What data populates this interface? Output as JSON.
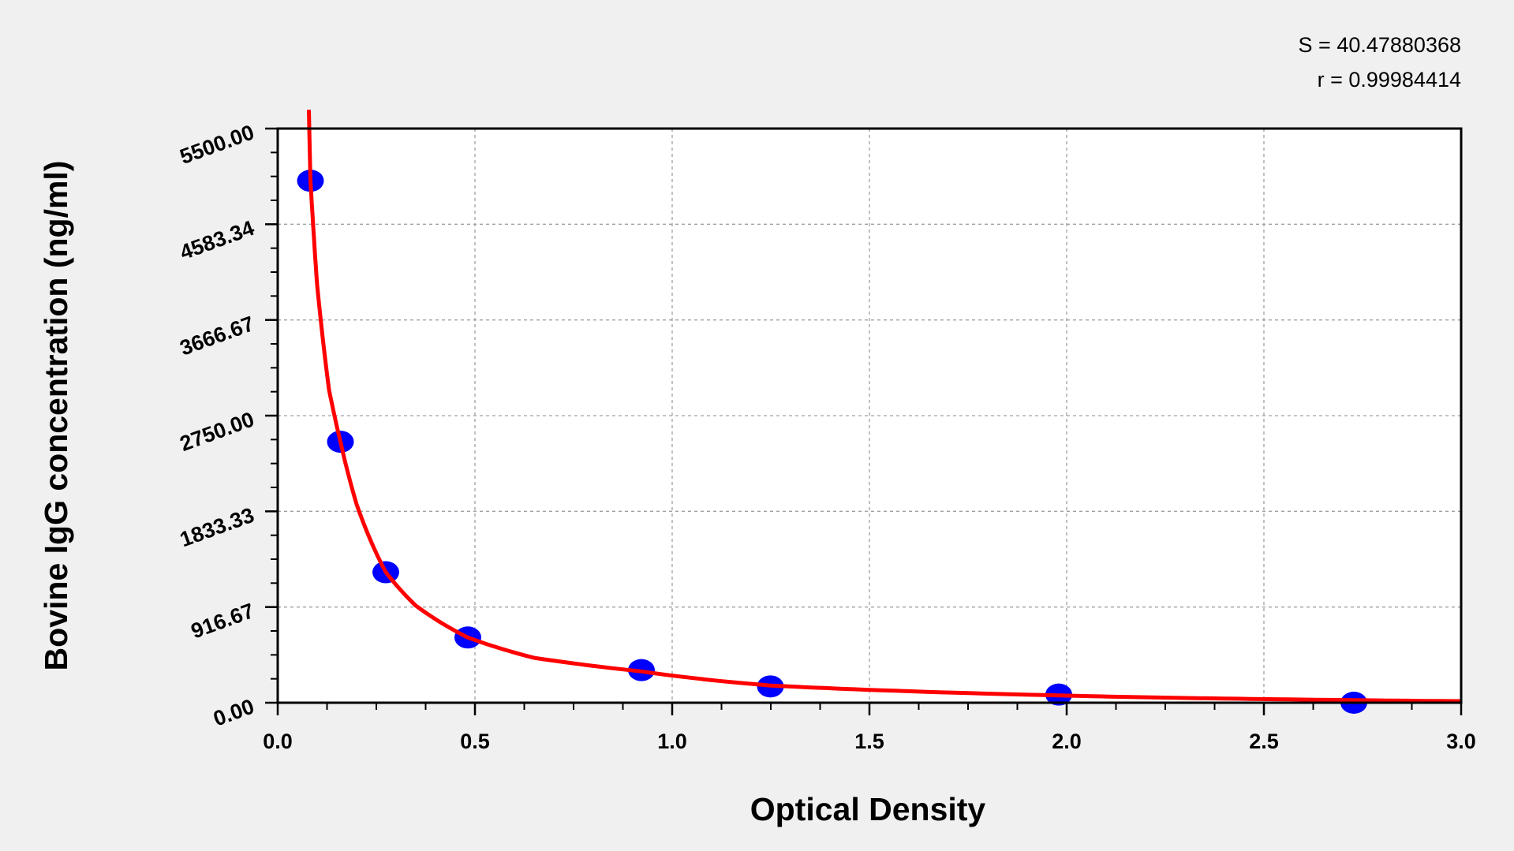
{
  "chart_data": {
    "type": "scatter",
    "xlabel": "Optical Density",
    "ylabel": "Bovine IgG concentration (ng/ml)",
    "xlim": [
      0,
      3.0
    ],
    "ylim": [
      0,
      5500
    ],
    "x_ticks": [
      "0.0",
      "0.5",
      "1.0",
      "1.5",
      "2.0",
      "2.5",
      "3.0"
    ],
    "y_ticks": [
      "0.00",
      "916.67",
      "1833.33",
      "2750.00",
      "3666.67",
      "4583.34",
      "5500.00"
    ],
    "grid": true,
    "annotations": [
      "S = 40.47880368",
      "r = 0.99984414"
    ],
    "colors": {
      "points": "#0000ff",
      "curve": "#ff0000",
      "background": "#f0f0f0",
      "plot": "#ffffff",
      "grid": "#a0a0a0"
    },
    "points": {
      "x": [
        0.083,
        0.159,
        0.274,
        0.482,
        0.922,
        1.249,
        1.98,
        2.728
      ],
      "y": [
        5000,
        2500,
        1250,
        625,
        312.5,
        156,
        78,
        0
      ]
    },
    "fit_curve": {
      "x": [
        0.079,
        0.083,
        0.1,
        0.13,
        0.159,
        0.2,
        0.274,
        0.35,
        0.482,
        0.65,
        0.922,
        1.249,
        1.6,
        1.98,
        2.4,
        2.728,
        3.0
      ],
      "y": [
        5680,
        5000,
        4000,
        3000,
        2500,
        1900,
        1250,
        930,
        625,
        430,
        300,
        165,
        110,
        70,
        40,
        25,
        15
      ]
    }
  }
}
